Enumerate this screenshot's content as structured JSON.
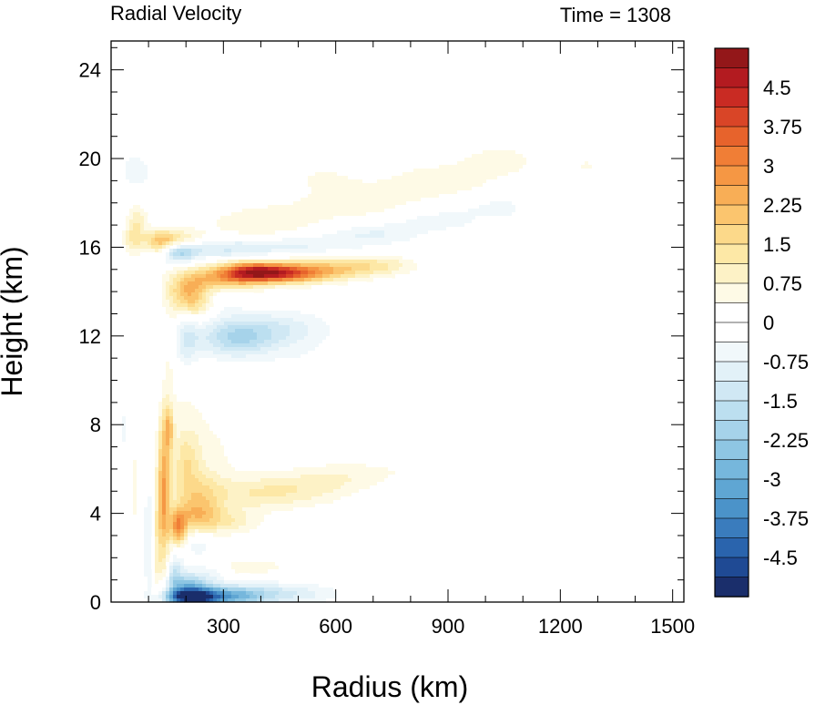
{
  "chart_data": {
    "type": "heatmap",
    "title": "Radial Velocity",
    "right_title": "Time = 1308",
    "xlabel": "Radius (km)",
    "ylabel": "Height (km)",
    "xlim": [
      0,
      1530
    ],
    "ylim": [
      0,
      25.3
    ],
    "x_ticks": [
      300,
      600,
      900,
      1200,
      1500
    ],
    "x_tick_labels": [
      "300",
      "600",
      "900",
      "1200",
      "1500"
    ],
    "y_ticks": [
      0,
      4,
      8,
      12,
      16,
      20,
      24
    ],
    "y_tick_labels": [
      "0",
      "4",
      "8",
      "12",
      "16",
      "20",
      "24"
    ],
    "colorbar": {
      "min": -5.25,
      "max": 5.25,
      "step": 0.375,
      "labels": [
        "4.5",
        "3.75",
        "3",
        "2.25",
        "1.5",
        "0.75",
        "0",
        "-0.75",
        "-1.5",
        "-2.25",
        "-3",
        "-3.75",
        "-4.5"
      ],
      "label_values": [
        4.5,
        3.75,
        3,
        2.25,
        1.5,
        0.75,
        0,
        -0.75,
        -1.5,
        -2.25,
        -3,
        -3.75,
        -4.5
      ],
      "colors": [
        "#1a2e6b",
        "#1f4a94",
        "#2a64ad",
        "#3a7cbd",
        "#4b93c9",
        "#5fa6d3",
        "#76b7dc",
        "#8ec6e3",
        "#a6d3ea",
        "#bcdff0",
        "#d0e8f4",
        "#e2f1f8",
        "#f1f8fb",
        "#ffffff",
        "#ffffff",
        "#fefae6",
        "#fdf2c6",
        "#fde8a6",
        "#fcd98a",
        "#fbc56e",
        "#f8ae56",
        "#f59744",
        "#f07e36",
        "#e7632c",
        "#d94527",
        "#c92b23",
        "#b31b20",
        "#931719"
      ]
    },
    "features": [
      {
        "kind": "positive",
        "label": "outflow jet",
        "r": [
          250,
          650
        ],
        "z": [
          14.3,
          15.3
        ],
        "peak": 5.0
      },
      {
        "kind": "negative",
        "label": "inflow above jet",
        "r": [
          150,
          850
        ],
        "z": [
          15.4,
          16.2
        ],
        "peak": -2.5
      },
      {
        "kind": "positive",
        "label": "upper outflow layer",
        "r": [
          300,
          1100
        ],
        "z": [
          17.0,
          20.5
        ],
        "peak": 1.2
      },
      {
        "kind": "negative",
        "label": "mid-level inflow",
        "r": [
          280,
          600
        ],
        "z": [
          11.2,
          12.8
        ],
        "peak": -2.5
      },
      {
        "kind": "positive",
        "label": "eyewall outflow",
        "r": [
          130,
          450
        ],
        "z": [
          3.0,
          6.0
        ],
        "peak": 4.5
      },
      {
        "kind": "negative",
        "label": "boundary-layer inflow",
        "r": [
          140,
          450
        ],
        "z": [
          0,
          0.9
        ],
        "peak": -5.25
      }
    ]
  }
}
